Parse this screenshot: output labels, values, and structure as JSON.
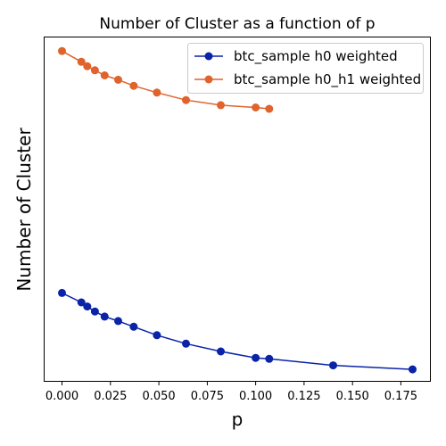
{
  "chart_data": {
    "type": "line",
    "title": "Number of Cluster as a function of p",
    "xlabel": "p",
    "ylabel": "Number of Cluster",
    "xlim": [
      -0.009,
      0.19
    ],
    "x_ticks": [
      "0.000",
      "0.025",
      "0.050",
      "0.075",
      "0.100",
      "0.125",
      "0.150",
      "0.175"
    ],
    "x_tick_values": [
      0,
      0.025,
      0.05,
      0.075,
      0.1,
      0.125,
      0.15,
      0.175
    ],
    "y_ticks_visible": false,
    "grid": false,
    "legend_position": "top-right",
    "series": [
      {
        "name": "btc_sample h0 weighted",
        "color": "#0a24a8",
        "x": [
          0.0,
          0.01,
          0.013,
          0.017,
          0.022,
          0.029,
          0.037,
          0.049,
          0.064,
          0.082,
          0.1,
          0.107,
          0.14,
          0.181
        ],
        "y": [
          26.0,
          23.2,
          22.0,
          20.5,
          19.0,
          17.7,
          16.0,
          13.5,
          11.0,
          8.7,
          6.8,
          6.5,
          4.6,
          3.4
        ]
      },
      {
        "name": "btc_sample h0_h1 weighted",
        "color": "#e0622c",
        "x": [
          0.0,
          0.01,
          0.013,
          0.017,
          0.022,
          0.029,
          0.037,
          0.049,
          0.064,
          0.082,
          0.1,
          0.107
        ],
        "y": [
          97.5,
          94.3,
          93.0,
          91.8,
          90.3,
          89.0,
          87.2,
          85.2,
          83.0,
          81.5,
          80.8,
          80.4
        ]
      }
    ],
    "ylim": [
      0,
      101.5
    ]
  }
}
